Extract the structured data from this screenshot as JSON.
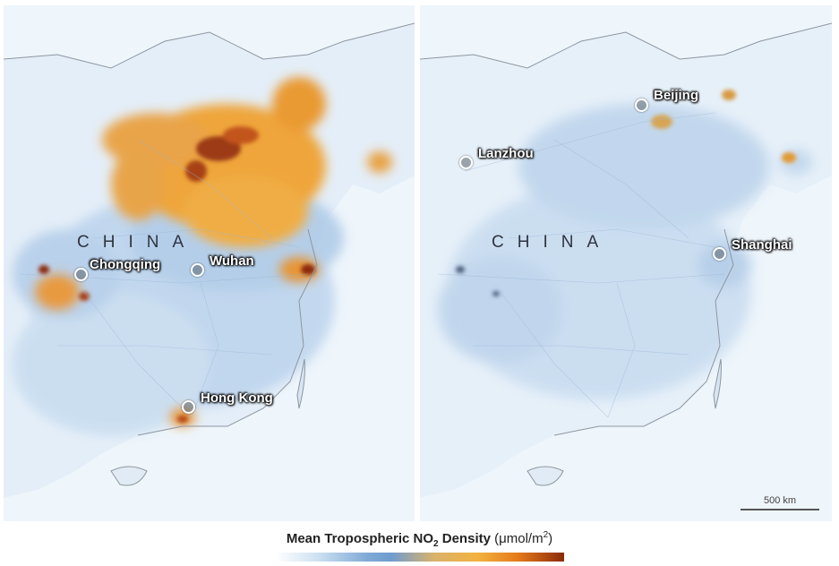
{
  "left_panel": {
    "country": "CHINA",
    "cities": [
      {
        "name": "Chongqing"
      },
      {
        "name": "Wuhan"
      },
      {
        "name": "Hong Kong"
      }
    ]
  },
  "right_panel": {
    "country": "CHINA",
    "cities": [
      {
        "name": "Beijing"
      },
      {
        "name": "Lanzhou"
      },
      {
        "name": "Shanghai"
      }
    ],
    "scale_bar": "500 km"
  },
  "legend": {
    "title_main": "Mean Tropospheric NO",
    "title_sub": "2",
    "title_rest": " Density",
    "unit_prefix": "(μmol/m",
    "unit_sup": "2",
    "unit_suffix": ")",
    "colormap": [
      "#ffffff",
      "#7fa9d6",
      "#f3b23f",
      "#e57a1a",
      "#8b2a0a"
    ]
  }
}
